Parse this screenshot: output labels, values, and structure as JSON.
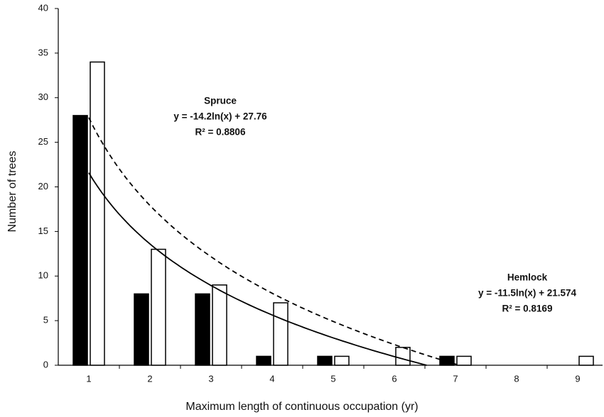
{
  "chart_data": {
    "type": "bar",
    "x_label": "Maximum length of continuous occupation (yr)",
    "y_label": "Number of trees",
    "categories": [
      "1",
      "2",
      "3",
      "4",
      "5",
      "6",
      "7",
      "8",
      "9"
    ],
    "series": [
      {
        "color": "#000000",
        "values": [
          28,
          8,
          8,
          1,
          1,
          0,
          1,
          0,
          0
        ]
      },
      {
        "color": "#ffffff",
        "values": [
          34,
          13,
          9,
          7,
          1,
          2,
          1,
          0,
          1
        ]
      }
    ],
    "ylim": [
      0,
      40
    ],
    "yticks": [
      0,
      5,
      10,
      15,
      20,
      25,
      30,
      35,
      40
    ],
    "grid": false,
    "trendlines": [
      {
        "label": "Spruce",
        "equation": "y = -14.2ln(x) + 27.76",
        "r2": "R² = 0.8806",
        "coef": -14.2,
        "intercept": 27.76,
        "dashed": true
      },
      {
        "label": "Hemlock",
        "equation": "y = -11.5ln(x) + 21.574",
        "r2": "R² = 0.8169",
        "coef": -11.5,
        "intercept": 21.574,
        "dashed": false
      }
    ]
  }
}
